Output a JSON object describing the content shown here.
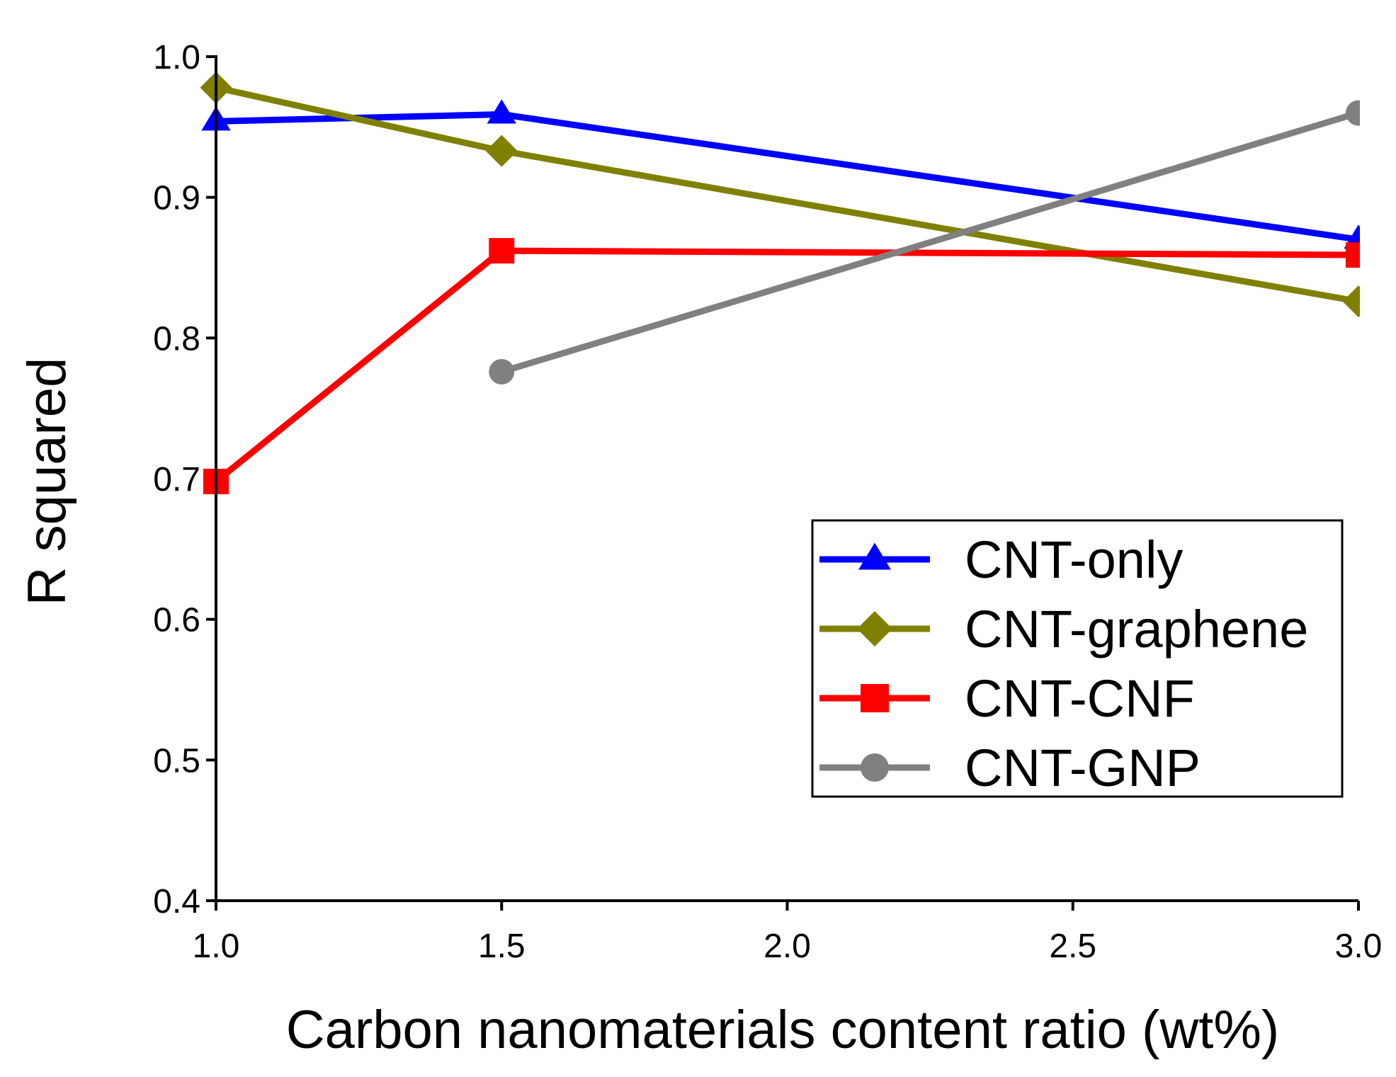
{
  "chart_data": {
    "type": "line",
    "title": "",
    "xlabel": "Carbon nanomaterials content ratio (wt%)",
    "ylabel": "R squared",
    "xlim": [
      1.0,
      3.0
    ],
    "ylim": [
      0.4,
      1.0
    ],
    "xticks": [
      "1.0",
      "1.5",
      "2.0",
      "2.5",
      "3.0"
    ],
    "yticks": [
      "0.4",
      "0.5",
      "0.6",
      "0.7",
      "0.8",
      "0.9",
      "1.0"
    ],
    "grid": false,
    "legend_position": "bottom-right",
    "series": [
      {
        "name": "CNT-only",
        "color": "#0000ff",
        "marker": "triangle",
        "x": [
          1.0,
          1.5,
          3.0
        ],
        "values": [
          0.954,
          0.959,
          0.87
        ]
      },
      {
        "name": "CNT-graphene",
        "color": "#808000",
        "marker": "diamond",
        "x": [
          1.0,
          1.5,
          3.0
        ],
        "values": [
          0.978,
          0.933,
          0.826
        ]
      },
      {
        "name": "CNT-CNF",
        "color": "#ff0000",
        "marker": "square",
        "x": [
          1.0,
          1.5,
          3.0
        ],
        "values": [
          0.698,
          0.862,
          0.859
        ]
      },
      {
        "name": "CNT-GNP",
        "color": "#808080",
        "marker": "circle",
        "x": [
          1.5,
          3.0
        ],
        "values": [
          0.776,
          0.96
        ]
      }
    ]
  }
}
